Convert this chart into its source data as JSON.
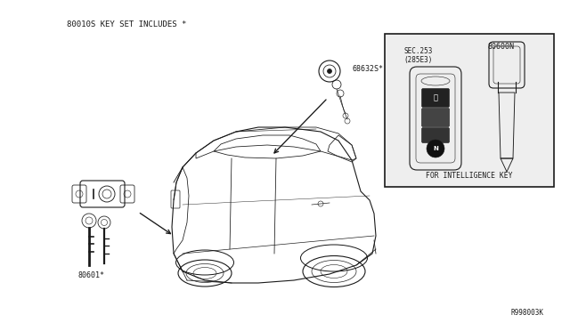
{
  "bg_color": "#ffffff",
  "line_color": "#1a1a1a",
  "title_text": "80010S KEY SET INCLUDES *",
  "part_label_68632S": "68632S*",
  "part_label_80601": "80601*",
  "part_label_80600N": "80600N",
  "sec_label": "SEC.253\n(285E3)",
  "intel_key_label": "FOR INTELLIGENCE KEY",
  "watermark": "R998003K",
  "figsize": [
    6.4,
    3.72
  ],
  "dpi": 100
}
